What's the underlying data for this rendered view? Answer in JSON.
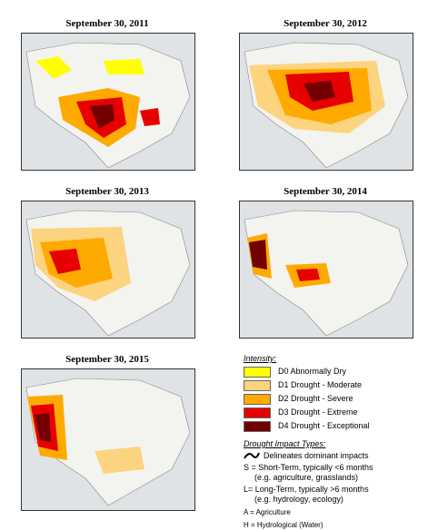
{
  "panels": [
    {
      "title": "September 30, 2011"
    },
    {
      "title": "September 30, 2012"
    },
    {
      "title": "September 30, 2013"
    },
    {
      "title": "September 30, 2014"
    },
    {
      "title": "September 30, 2015"
    }
  ],
  "legend": {
    "intensity_title": "Intensity:",
    "categories": [
      {
        "label": "D0 Abnormally Dry",
        "color": "#ffff00"
      },
      {
        "label": "D1 Drought - Moderate",
        "color": "#fcd37f"
      },
      {
        "label": "D2 Drought - Severe",
        "color": "#ffaa00"
      },
      {
        "label": "D3 Drought - Extreme",
        "color": "#e60000"
      },
      {
        "label": "D4 Drought - Exceptional",
        "color": "#730000"
      }
    ],
    "impact_title": "Drought Impact Types:",
    "impact_line": "Delineates dominant impacts",
    "short_term_1": "S = Short-Term, typically <6 months",
    "short_term_2": "(e.g. agriculture, grasslands)",
    "long_term_1": "L= Long-Term, typically >6 months",
    "long_term_2": "(e.g. hydrology, ecology)",
    "agriculture": "A = Agriculture",
    "hydrological": "H = Hydrological (Water)"
  }
}
